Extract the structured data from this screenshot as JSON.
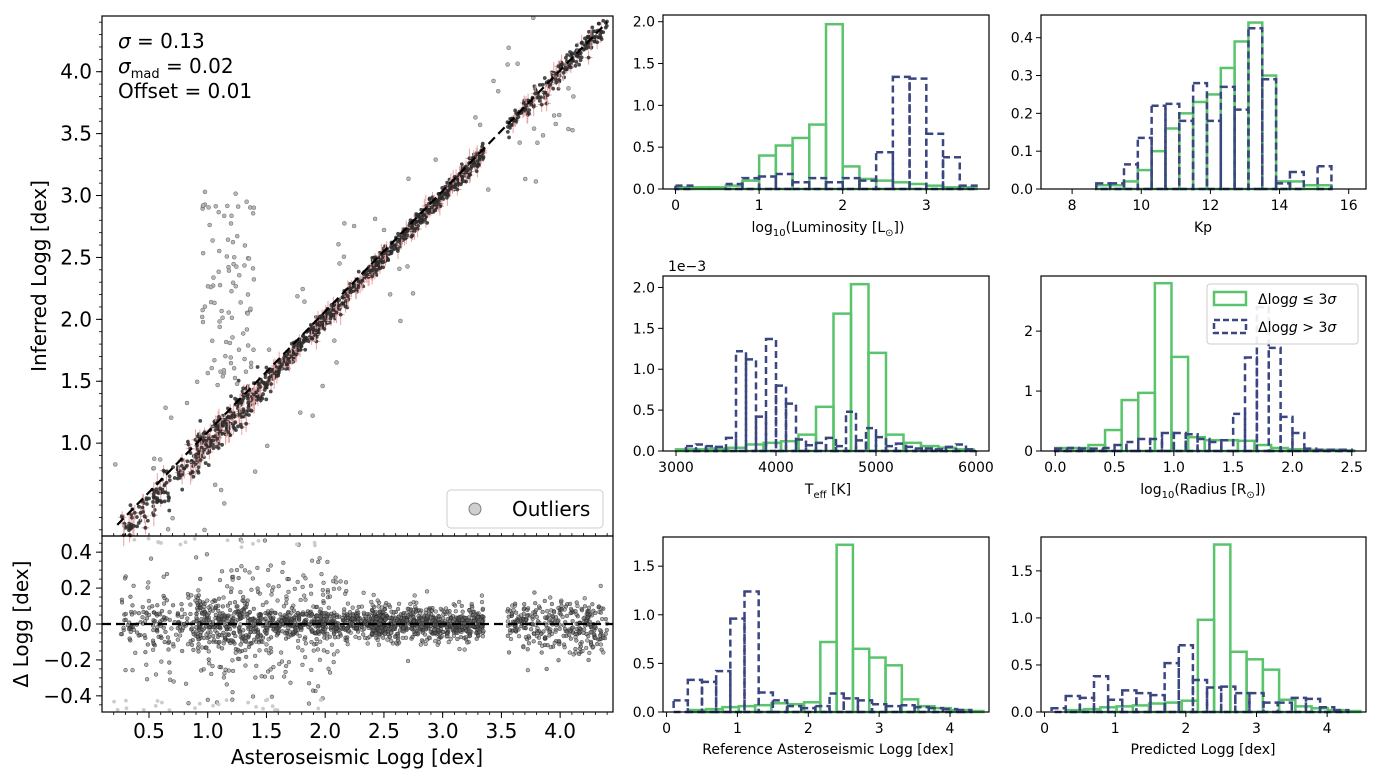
{
  "colors": {
    "green": "#5ac46d",
    "navy": "#3b4580",
    "outlier": "#b8b8b8",
    "point": "#2b2b2b",
    "error_bar": "#e7a3a3"
  },
  "chart_data": [
    {
      "id": "main",
      "type": "scatter",
      "ylabel": "Inferred Logg [dex]",
      "xlim": [
        0.1,
        4.45
      ],
      "ylim": [
        0.25,
        4.45
      ],
      "yticks": [
        1.0,
        1.5,
        2.0,
        2.5,
        3.0,
        3.5,
        4.0
      ],
      "yticklabels": [
        "1.0",
        "1.5",
        "2.0",
        "2.5",
        "3.0",
        "3.5",
        "4.0"
      ],
      "stats": {
        "sigma": "= 0.13",
        "sigma_mad": "= 0.02",
        "offset": "Offset = 0.01"
      },
      "legend": {
        "label": "Outliers",
        "position": "bottom-right"
      },
      "one_to_one_line": [
        [
          0.23,
          0.34
        ],
        [
          4.4,
          4.4
        ]
      ]
    },
    {
      "id": "residual",
      "type": "scatter",
      "xlabel": "Asteroseismic Logg [dex]",
      "ylabel": "Δ Logg [dex]",
      "xlim": [
        0.1,
        4.45
      ],
      "ylim": [
        -0.49,
        0.49
      ],
      "xticks": [
        0.5,
        1.0,
        1.5,
        2.0,
        2.5,
        3.0,
        3.5,
        4.0
      ],
      "xticklabels": [
        "0.5",
        "1.0",
        "1.5",
        "2.0",
        "2.5",
        "3.0",
        "3.5",
        "4.0"
      ],
      "yticks": [
        -0.4,
        -0.2,
        0.0,
        0.2,
        0.4
      ],
      "yticklabels": [
        "−0.4",
        "−0.2",
        "0.0",
        "0.2",
        "0.4"
      ]
    },
    {
      "id": "h_lum",
      "type": "histogram",
      "xlabel": "log10(Luminosity [L⊙])",
      "xlim": [
        -0.15,
        3.75
      ],
      "ylim": [
        0,
        2.08
      ],
      "xticks": [
        0,
        1,
        2,
        3
      ],
      "xticklabels": [
        "0",
        "1",
        "2",
        "3"
      ],
      "yticks": [
        0,
        0.5,
        1.0,
        1.5,
        2.0
      ],
      "yticklabels": [
        "0.0",
        "0.5",
        "1.0",
        "1.5",
        "2.0"
      ],
      "series": [
        {
          "name": "Δlogg ≤ 3σ",
          "style": "solid",
          "edges": [
            0,
            0.2,
            0.4,
            0.6,
            0.8,
            1.0,
            1.2,
            1.4,
            1.6,
            1.8,
            2.0,
            2.2,
            2.4,
            2.6,
            2.8,
            3.0,
            3.2,
            3.4,
            3.6
          ],
          "values": [
            0.02,
            0.02,
            0.02,
            0.04,
            0.1,
            0.4,
            0.52,
            0.61,
            0.77,
            1.97,
            0.27,
            0.12,
            0.1,
            0.08,
            0.06,
            0.04,
            0.02,
            0.02
          ]
        },
        {
          "name": "Δlogg > 3σ",
          "style": "dashed",
          "edges": [
            0,
            0.2,
            0.4,
            0.6,
            0.8,
            1.0,
            1.2,
            1.4,
            1.6,
            1.8,
            2.0,
            2.2,
            2.4,
            2.6,
            2.8,
            3.0,
            3.2,
            3.4,
            3.6
          ],
          "values": [
            0.04,
            0.0,
            0.0,
            0.06,
            0.13,
            0.15,
            0.18,
            0.08,
            0.13,
            0.08,
            0.13,
            0.1,
            0.44,
            1.34,
            1.32,
            0.66,
            0.38,
            0.04
          ]
        }
      ]
    },
    {
      "id": "h_kp",
      "type": "histogram",
      "xlabel": "Kp",
      "xlim": [
        7.1,
        16.5
      ],
      "ylim": [
        0,
        0.46
      ],
      "xticks": [
        8,
        10,
        12,
        14,
        16
      ],
      "xticklabels": [
        "8",
        "10",
        "12",
        "14",
        "16"
      ],
      "yticks": [
        0,
        0.1,
        0.2,
        0.3,
        0.4
      ],
      "yticklabels": [
        "0.0",
        "0.1",
        "0.2",
        "0.3",
        "0.4"
      ],
      "series": [
        {
          "name": "Δlogg ≤ 3σ",
          "style": "solid",
          "edges": [
            7.5,
            7.9,
            8.3,
            8.7,
            9.1,
            9.5,
            9.9,
            10.3,
            10.7,
            11.1,
            11.5,
            11.9,
            12.3,
            12.7,
            13.1,
            13.5,
            13.9,
            14.3,
            14.7,
            15.1,
            15.5,
            15.9
          ],
          "values": [
            0,
            0,
            0,
            0.01,
            0.01,
            0.02,
            0.05,
            0.1,
            0.16,
            0.2,
            0.23,
            0.25,
            0.32,
            0.39,
            0.44,
            0.3,
            0.02,
            0.02,
            0.01,
            0.01,
            0.0
          ]
        },
        {
          "name": "Δlogg > 3σ",
          "style": "dashed",
          "edges": [
            7.5,
            7.9,
            8.3,
            8.7,
            9.1,
            9.5,
            9.9,
            10.3,
            10.7,
            11.1,
            11.5,
            11.9,
            12.3,
            12.7,
            13.1,
            13.5,
            13.9,
            14.3,
            14.7,
            15.1,
            15.5,
            15.9
          ],
          "values": [
            0,
            0,
            0,
            0.015,
            0.015,
            0.065,
            0.135,
            0.22,
            0.225,
            0.18,
            0.28,
            0.18,
            0.27,
            0.21,
            0.425,
            0.29,
            0.015,
            0.045,
            0.0,
            0.06,
            0.0
          ]
        }
      ]
    },
    {
      "id": "h_teff",
      "type": "histogram",
      "xlabel": "Teff [K]",
      "offset_text": "1e−3",
      "xlim": [
        2870,
        6130
      ],
      "ylim": [
        0,
        2.14
      ],
      "xticks": [
        3000,
        4000,
        5000,
        6000
      ],
      "xticklabels": [
        "3000",
        "4000",
        "5000",
        "6000"
      ],
      "yticks": [
        0,
        0.5,
        1.0,
        1.5,
        2.0
      ],
      "yticklabels": [
        "0.0",
        "0.5",
        "1.0",
        "1.5",
        "2.0"
      ],
      "series": [
        {
          "name": "Δlogg ≤ 3σ",
          "style": "solid",
          "edges": [
            3000,
            3175,
            3350,
            3525,
            3700,
            3875,
            4050,
            4225,
            4400,
            4575,
            4750,
            4925,
            5100,
            5275,
            5450,
            5625,
            5800,
            5975
          ],
          "values": [
            0.02,
            0.02,
            0.03,
            0.04,
            0.08,
            0.1,
            0.12,
            0.2,
            0.54,
            1.68,
            2.04,
            1.2,
            0.2,
            0.1,
            0.06,
            0.04,
            0.02
          ]
        },
        {
          "name": "Δlogg > 3σ",
          "style": "dashed",
          "edges": [
            3000,
            3100,
            3200,
            3300,
            3400,
            3500,
            3600,
            3700,
            3800,
            3900,
            4000,
            4100,
            4200,
            4300,
            4400,
            4500,
            4600,
            4700,
            4800,
            4900,
            5000,
            5100,
            5200,
            5300,
            5400,
            5500,
            5600,
            5700,
            5800,
            5900,
            6000
          ],
          "values": [
            0,
            0.06,
            0.08,
            0.06,
            0.05,
            0.16,
            1.22,
            1.12,
            0.42,
            1.37,
            0.8,
            0.58,
            0.14,
            0.07,
            0.1,
            0.16,
            0.06,
            0.48,
            0.13,
            0.28,
            0.17,
            0.06,
            0.09,
            0.05,
            0.03,
            0.03,
            0.02,
            0.05,
            0.08,
            0.02
          ]
        }
      ]
    },
    {
      "id": "h_rad",
      "type": "histogram",
      "xlabel": "log10(Radius [R⊙])",
      "xlim": [
        -0.12,
        2.62
      ],
      "ylim": [
        0,
        2.92
      ],
      "xticks": [
        0,
        0.5,
        1.0,
        1.5,
        2.0,
        2.5
      ],
      "xticklabels": [
        "0.0",
        "0.5",
        "1.0",
        "1.5",
        "2.0",
        "2.5"
      ],
      "yticks": [
        0,
        1,
        2
      ],
      "yticklabels": [
        "0",
        "1",
        "2"
      ],
      "legend": {
        "position": "top-right"
      },
      "series": [
        {
          "name": "Δlogg ≤ 3σ",
          "style": "solid",
          "edges": [
            0,
            0.14,
            0.28,
            0.42,
            0.56,
            0.7,
            0.84,
            0.98,
            1.12,
            1.26,
            1.4,
            1.54,
            1.68,
            1.82,
            1.96,
            2.1,
            2.24,
            2.38,
            2.52
          ],
          "values": [
            0.05,
            0.05,
            0.1,
            0.35,
            0.85,
            0.97,
            2.8,
            1.57,
            0.23,
            0.18,
            0.18,
            0.17,
            0.1,
            0.05,
            0.03,
            0.02,
            0.02,
            0.01
          ]
        },
        {
          "name": "Δlogg > 3σ",
          "style": "dashed",
          "edges": [
            0,
            0.1,
            0.2,
            0.3,
            0.4,
            0.5,
            0.6,
            0.7,
            0.8,
            0.9,
            1.0,
            1.1,
            1.2,
            1.3,
            1.4,
            1.5,
            1.6,
            1.7,
            1.8,
            1.9,
            2.0,
            2.1,
            2.2,
            2.3,
            2.4,
            2.5
          ],
          "values": [
            0.04,
            0.05,
            0.04,
            0.04,
            0.05,
            0.1,
            0.15,
            0.2,
            0.2,
            0.3,
            0.3,
            0.28,
            0.2,
            0.15,
            0.18,
            0.62,
            1.56,
            2.4,
            1.72,
            0.57,
            0.3,
            0.04,
            0.02,
            0.02,
            0.02
          ]
        }
      ]
    },
    {
      "id": "h_ref",
      "type": "histogram",
      "xlabel": "Reference Asteroseismic Logg [dex]",
      "xlim": [
        -0.05,
        4.55
      ],
      "ylim": [
        0,
        1.8
      ],
      "xticks": [
        0,
        1,
        2,
        3,
        4
      ],
      "xticklabels": [
        "0",
        "1",
        "2",
        "3",
        "4"
      ],
      "yticks": [
        0,
        0.5,
        1.0,
        1.5
      ],
      "yticklabels": [
        "0.0",
        "0.5",
        "1.0",
        "1.5"
      ],
      "series": [
        {
          "name": "Δlogg ≤ 3σ",
          "style": "solid",
          "edges": [
            0.1,
            0.33,
            0.56,
            0.79,
            1.02,
            1.25,
            1.48,
            1.71,
            1.94,
            2.17,
            2.4,
            2.63,
            2.86,
            3.09,
            3.32,
            3.55,
            3.78,
            4.01,
            4.24,
            4.47
          ],
          "values": [
            0.0,
            0.02,
            0.03,
            0.05,
            0.06,
            0.07,
            0.09,
            0.08,
            0.1,
            0.72,
            1.72,
            0.65,
            0.56,
            0.48,
            0.13,
            0.06,
            0.04,
            0.02,
            0.01
          ]
        },
        {
          "name": "Δlogg > 3σ",
          "style": "dashed",
          "edges": [
            0.1,
            0.3,
            0.5,
            0.7,
            0.9,
            1.1,
            1.3,
            1.5,
            1.7,
            1.9,
            2.1,
            2.3,
            2.5,
            2.7,
            2.9,
            3.1,
            3.3,
            3.5,
            3.7,
            3.9,
            4.1,
            4.3
          ],
          "values": [
            0.12,
            0.33,
            0.31,
            0.42,
            0.96,
            1.24,
            0.2,
            0.12,
            0.06,
            0.04,
            0.06,
            0.19,
            0.14,
            0.12,
            0.08,
            0.06,
            0.07,
            0.05,
            0.04,
            0.03,
            0.02
          ]
        }
      ]
    },
    {
      "id": "h_pred",
      "type": "histogram",
      "xlabel": "Predicted Logg [dex]",
      "xlim": [
        -0.05,
        4.55
      ],
      "ylim": [
        0,
        1.86
      ],
      "xticks": [
        0,
        1,
        2,
        3,
        4
      ],
      "xticklabels": [
        "0",
        "1",
        "2",
        "3",
        "4"
      ],
      "yticks": [
        0,
        0.5,
        1.0,
        1.5
      ],
      "yticklabels": [
        "0.0",
        "0.5",
        "1.0",
        "1.5"
      ],
      "series": [
        {
          "name": "Δlogg ≤ 3σ",
          "style": "solid",
          "edges": [
            0.1,
            0.33,
            0.56,
            0.79,
            1.02,
            1.25,
            1.48,
            1.71,
            1.94,
            2.17,
            2.4,
            2.63,
            2.86,
            3.09,
            3.32,
            3.55,
            3.78,
            4.01,
            4.24,
            4.47
          ],
          "values": [
            0.0,
            0.02,
            0.03,
            0.05,
            0.06,
            0.07,
            0.09,
            0.1,
            0.12,
            0.98,
            1.78,
            0.64,
            0.56,
            0.45,
            0.13,
            0.06,
            0.04,
            0.02,
            0.01
          ]
        },
        {
          "name": "Δlogg > 3σ",
          "style": "dashed",
          "edges": [
            0.1,
            0.3,
            0.5,
            0.7,
            0.9,
            1.1,
            1.3,
            1.5,
            1.7,
            1.9,
            2.1,
            2.3,
            2.5,
            2.7,
            2.9,
            3.1,
            3.3,
            3.5,
            3.7,
            3.9,
            4.1,
            4.3
          ],
          "values": [
            0.04,
            0.17,
            0.15,
            0.38,
            0.13,
            0.23,
            0.2,
            0.18,
            0.52,
            0.71,
            0.34,
            0.26,
            0.27,
            0.2,
            0.2,
            0.1,
            0.1,
            0.15,
            0.14,
            0.05,
            0.02
          ]
        }
      ]
    }
  ]
}
